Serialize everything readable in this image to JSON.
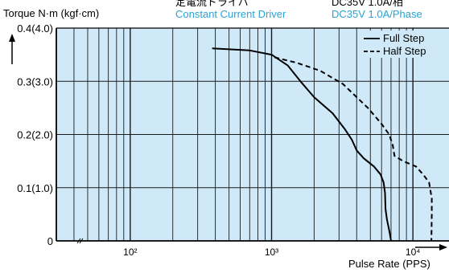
{
  "chart_data": {
    "type": "line",
    "y_label": "Torque N·m (kgf·cm)",
    "x_label": "Pulse Rate (PPS)",
    "x_scale": "log",
    "xlim": [
      30,
      18000
    ],
    "ylim": [
      0,
      0.4
    ],
    "x_ticks": [
      {
        "value": 100,
        "label": "10²"
      },
      {
        "value": 1000,
        "label": "10³"
      },
      {
        "value": 10000,
        "label": "10⁴"
      }
    ],
    "y_ticks": [
      {
        "value": 0,
        "label": "0"
      },
      {
        "value": 0.1,
        "label": "0.1(1.0)"
      },
      {
        "value": 0.2,
        "label": "0.2(2.0)"
      },
      {
        "value": 0.3,
        "label": "0.3(3.0)"
      },
      {
        "value": 0.4,
        "label": "0.4(4.0)"
      }
    ],
    "header": {
      "left_top": "定電流ドライバ",
      "left_bottom": "Constant Current Driver",
      "right_top": "DC35V 1.0A/相",
      "right_bottom": "DC35V 1.0A/Phase"
    },
    "legend": {
      "position": "top-right"
    },
    "series": [
      {
        "name": "Full Step",
        "style": "solid",
        "points": [
          [
            380,
            0.362
          ],
          [
            700,
            0.358
          ],
          [
            1000,
            0.35
          ],
          [
            1300,
            0.33
          ],
          [
            1600,
            0.3
          ],
          [
            2000,
            0.27
          ],
          [
            2700,
            0.24
          ],
          [
            3300,
            0.21
          ],
          [
            3700,
            0.19
          ],
          [
            4000,
            0.17
          ],
          [
            4500,
            0.155
          ],
          [
            5300,
            0.14
          ],
          [
            5900,
            0.125
          ],
          [
            6200,
            0.11
          ],
          [
            6350,
            0.09
          ],
          [
            6400,
            0.06
          ],
          [
            6550,
            0.04
          ],
          [
            6800,
            0.02
          ],
          [
            7000,
            0.0
          ]
        ]
      },
      {
        "name": "Half Step",
        "style": "dashed",
        "points": [
          [
            1050,
            0.345
          ],
          [
            1500,
            0.335
          ],
          [
            2200,
            0.32
          ],
          [
            3200,
            0.295
          ],
          [
            4000,
            0.27
          ],
          [
            4800,
            0.25
          ],
          [
            6000,
            0.22
          ],
          [
            6800,
            0.2
          ],
          [
            7200,
            0.18
          ],
          [
            7400,
            0.16
          ],
          [
            8500,
            0.15
          ],
          [
            10500,
            0.14
          ],
          [
            11800,
            0.125
          ],
          [
            13000,
            0.11
          ],
          [
            13600,
            0.08
          ],
          [
            13600,
            0.05
          ],
          [
            13500,
            0.0
          ]
        ]
      }
    ]
  },
  "colors": {
    "plot_bg": "#cfe9f8",
    "grid": "#1a1a1a",
    "accent_text": "#27a2d6",
    "line": "#000000"
  }
}
